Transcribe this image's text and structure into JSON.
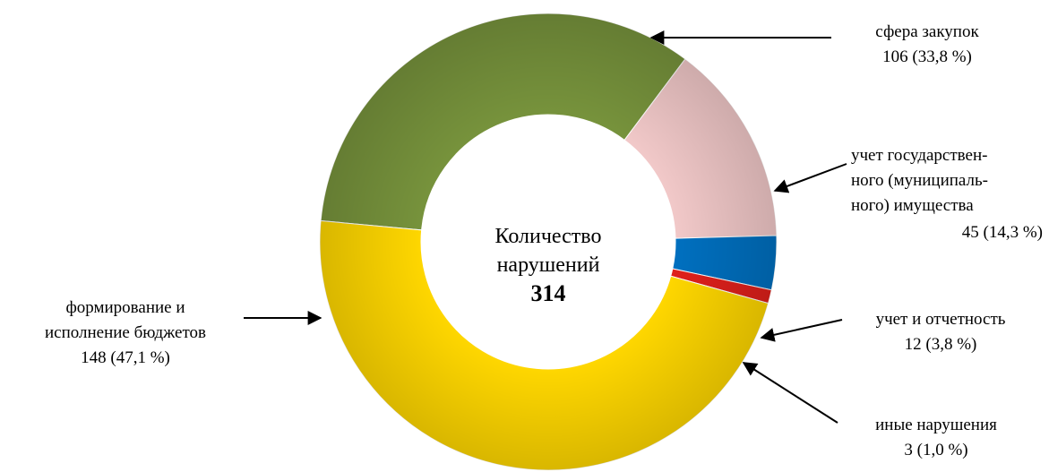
{
  "chart_data": {
    "type": "donut",
    "categories": [
      "сфера закупок",
      "учет государствен-\nного (муниципаль-\nного) имущества",
      "учет и отчетность",
      "иные нарушения",
      "формирование и\nисполнение бюджетов"
    ],
    "values": [
      106,
      45,
      12,
      3,
      148
    ],
    "value_labels": [
      "106 (33,8 %)",
      "45 (14,3 %)",
      "12 (3,8 %)",
      "3 (1,0 %)",
      "148 (47,1 %)"
    ],
    "colors": [
      "#77933c",
      "#f2c9c9",
      "#0070c0",
      "#e0201b",
      "#ffd700"
    ],
    "center_label": "Количество\nнарушений",
    "total": 314
  }
}
